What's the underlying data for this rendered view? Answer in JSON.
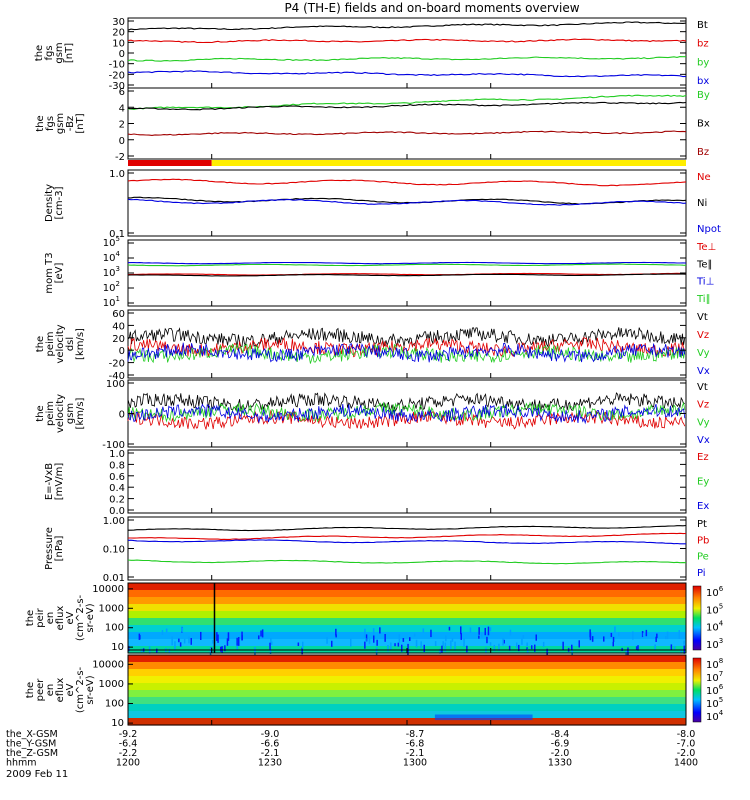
{
  "title": "P4 (TH-E) fields and on-board moments overview",
  "date": "2009 Feb 11",
  "colors": {
    "black": "#000000",
    "red": "#e00000",
    "green": "#22cc22",
    "blue": "#0000e0",
    "yellow": "#ffee00",
    "darkred": "#a00000"
  },
  "chart_data": [
    {
      "type": "line",
      "id": "fgs_gsm",
      "ylabel": [
        "the",
        "fgs",
        "gsm",
        "[nT]"
      ],
      "yticks": [
        "30",
        "20",
        "10",
        "0",
        "-10",
        "-20",
        "-30"
      ],
      "ylim": [
        -30,
        30
      ],
      "log": false,
      "series": [
        {
          "name": "Bt",
          "color": "#000000",
          "start": 20,
          "end": 26
        },
        {
          "name": "bz",
          "color": "#e00000",
          "start": 10,
          "end": 11
        },
        {
          "name": "by",
          "color": "#22cc22",
          "start": -6,
          "end": -4
        },
        {
          "name": "bx",
          "color": "#0000e0",
          "start": -16,
          "end": -20
        }
      ],
      "extra_labels": []
    },
    {
      "type": "line",
      "id": "fgs_gsm_dsl",
      "ylabel": [
        "the",
        "fgs",
        "gsm",
        "-Bz",
        "[nT]"
      ],
      "yticks": [
        "6",
        "4",
        "2",
        "0",
        "-2"
      ],
      "ylim": [
        -3,
        7
      ],
      "log": false,
      "series": [
        {
          "name": "By",
          "color": "#22cc22",
          "start": 4,
          "end": 6
        },
        {
          "name": "Bx",
          "color": "#000000",
          "start": 4,
          "end": 5
        },
        {
          "name": "Bz",
          "color": "#a00000",
          "start": 0.5,
          "end": 0.8
        }
      ],
      "extra_labels": []
    },
    {
      "type": "line",
      "id": "density",
      "ylabel": [
        "Density",
        "[cm-3]"
      ],
      "yticks": [
        "1.0",
        "",
        "0.1"
      ],
      "ylim": [
        0.1,
        1.5
      ],
      "log": true,
      "series": [
        {
          "name": "Ne",
          "color": "#e00000",
          "start": 0.95,
          "end": 0.85
        },
        {
          "name": "Ni",
          "color": "#000000",
          "start": 0.45,
          "end": 0.4
        },
        {
          "name": "Npot",
          "color": "#0000e0",
          "start": 0.42,
          "end": 0.38
        }
      ],
      "extra_labels": []
    },
    {
      "type": "line",
      "id": "temperature",
      "ylabel": [
        "mom T3",
        "[eV]"
      ],
      "yticks": [
        "10^5",
        "10^4",
        "10^3",
        "10^2",
        "10^1"
      ],
      "ylim": [
        10,
        100000
      ],
      "log": true,
      "series": [
        {
          "name": "Te⊥",
          "color": "#e00000",
          "start": 800,
          "end": 900
        },
        {
          "name": "Te∥",
          "color": "#000000",
          "start": 700,
          "end": 800
        },
        {
          "name": "Ti⊥",
          "color": "#0000e0",
          "start": 4000,
          "end": 4000
        },
        {
          "name": "Ti∥",
          "color": "#22cc22",
          "start": 3000,
          "end": 3200
        }
      ],
      "extra_labels": []
    },
    {
      "type": "line",
      "id": "peim_velocity",
      "ylabel": [
        "the",
        "peim",
        "velocity",
        "dsl",
        "[km/s]"
      ],
      "yticks": [
        "60",
        "40",
        "20",
        "0",
        "-20",
        "-40"
      ],
      "ylim": [
        -45,
        65
      ],
      "log": false,
      "series": [
        {
          "name": "Vt",
          "color": "#000000",
          "start": 20,
          "end": 22
        },
        {
          "name": "Vz",
          "color": "#e00000",
          "start": 5,
          "end": 5
        },
        {
          "name": "Vy",
          "color": "#22cc22",
          "start": -5,
          "end": -8
        },
        {
          "name": "Vx",
          "color": "#0000e0",
          "start": -3,
          "end": -5
        }
      ],
      "extra_labels": []
    },
    {
      "type": "line",
      "id": "peim_velocity_gsm",
      "ylabel": [
        "the",
        "peim",
        "velocity",
        "gsm",
        "[km/s]"
      ],
      "yticks": [
        "100",
        "0",
        "-100"
      ],
      "ylim": [
        -150,
        150
      ],
      "log": false,
      "series": [
        {
          "name": "Vt",
          "color": "#000000",
          "start": 50,
          "end": 50
        },
        {
          "name": "Vz",
          "color": "#e00000",
          "start": -30,
          "end": -30
        },
        {
          "name": "Vy",
          "color": "#22cc22",
          "start": 5,
          "end": 10
        },
        {
          "name": "Vx",
          "color": "#0000e0",
          "start": 0,
          "end": 0
        }
      ],
      "extra_labels": []
    },
    {
      "type": "line",
      "id": "e_vxb",
      "ylabel": [
        "E=-VxB",
        "[mV/m]"
      ],
      "yticks": [
        "1.0",
        "0.8",
        "0.6",
        "0.4",
        "0.2",
        "0.0"
      ],
      "ylim": [
        0,
        1
      ],
      "log": false,
      "series": [
        {
          "name": "Ez",
          "color": "#e00000",
          "start": null,
          "end": null
        },
        {
          "name": "Ey",
          "color": "#22cc22",
          "start": null,
          "end": null
        },
        {
          "name": "Ex",
          "color": "#0000e0",
          "start": null,
          "end": null
        }
      ],
      "extra_labels": []
    },
    {
      "type": "line",
      "id": "pressure",
      "ylabel": [
        "Pressure",
        "[nPa]"
      ],
      "yticks": [
        "1.00",
        "0.10",
        "0.01"
      ],
      "ylim": [
        0.01,
        1
      ],
      "log": true,
      "series": [
        {
          "name": "Pt",
          "color": "#000000",
          "start": 0.38,
          "end": 0.5
        },
        {
          "name": "Pb",
          "color": "#e00000",
          "start": 0.2,
          "end": 0.28
        },
        {
          "name": "Pe",
          "color": "#22cc22",
          "start": 0.04,
          "end": 0.035
        },
        {
          "name": "Pi",
          "color": "#0000e0",
          "start": 0.18,
          "end": 0.15
        }
      ],
      "extra_labels": []
    },
    {
      "type": "heatmap",
      "id": "peir_spec",
      "ylabel": [
        "the",
        "peir",
        "en",
        "eflux",
        "eV",
        "(cm^2-s-",
        "sr-eV)"
      ],
      "yticks": [
        "10000",
        "1000",
        "100",
        "10"
      ],
      "ylim": [
        5,
        20000
      ],
      "log": true,
      "colorbar": [
        "10^6",
        "10^5",
        "10^4",
        "10^3"
      ],
      "extra_labels": []
    },
    {
      "type": "heatmap",
      "id": "peer_spec",
      "ylabel": [
        "the",
        "peer",
        "en",
        "eflux",
        "eV",
        "(cm^2-s-",
        "sr-eV)"
      ],
      "yticks": [
        "10000",
        "1000",
        "100",
        "10"
      ],
      "ylim": [
        8,
        30000
      ],
      "log": true,
      "colorbar": [
        "10^8",
        "10^7",
        "10^6",
        "10^5",
        "10^4"
      ],
      "extra_labels": []
    }
  ],
  "mode_bar": {
    "segments": [
      {
        "color": "#e00000",
        "from": 1200,
        "to": 1230
      },
      {
        "color": "#ffee00",
        "from": 1230,
        "to": 1400
      }
    ]
  },
  "xaxis": {
    "rows": [
      {
        "label": "the_X-GSM",
        "values": [
          "-9.2",
          "-9.0",
          "-8.7",
          "-8.4",
          "-8.0"
        ]
      },
      {
        "label": "the_Y-GSM",
        "values": [
          "-6.4",
          "-6.6",
          "-6.8",
          "-6.9",
          "-7.0"
        ]
      },
      {
        "label": "the_Z-GSM",
        "values": [
          "-2.2",
          "-2.1",
          "-2.1",
          "-2.0",
          "-2.0"
        ]
      },
      {
        "label": "hhmm",
        "values": [
          "1200",
          "1230",
          "1300",
          "1330",
          "1400"
        ]
      }
    ]
  }
}
